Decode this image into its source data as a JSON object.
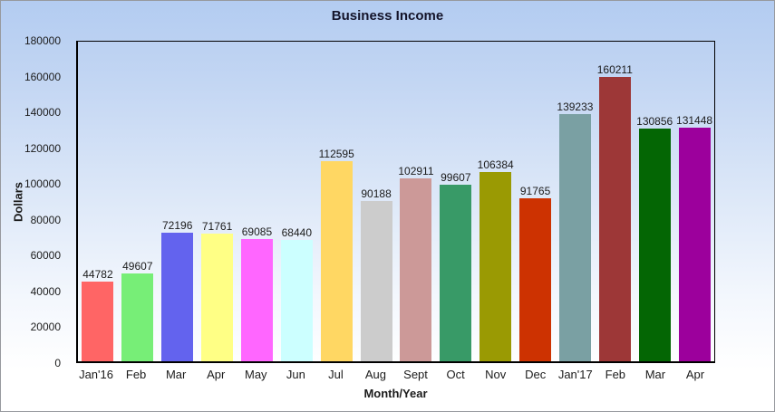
{
  "chart_data": {
    "type": "bar",
    "title": "Business Income",
    "xlabel": "Month/Year",
    "ylabel": "Dollars",
    "ylim": [
      0,
      180000
    ],
    "ytick_step": 20000,
    "grid": false,
    "legend": "none",
    "value_labels_shown": true,
    "categories": [
      "Jan'16",
      "Feb",
      "Mar",
      "Apr",
      "May",
      "Jun",
      "Jul",
      "Aug",
      "Sept",
      "Oct",
      "Nov",
      "Dec",
      "Jan'17",
      "Feb",
      "Mar",
      "Apr"
    ],
    "values": [
      44782,
      49607,
      72196,
      71761,
      69085,
      68440,
      112595,
      90188,
      102911,
      99607,
      106384,
      91765,
      139233,
      160211,
      130856,
      131448
    ],
    "bar_colors": [
      "#ff6565",
      "#77ee77",
      "#6363ee",
      "#ffff85",
      "#ff66ff",
      "#ccffff",
      "#ffd763",
      "#cccccc",
      "#cc9998",
      "#389a67",
      "#9a9a03",
      "#cd3201",
      "#7aa0a3",
      "#9d3737",
      "#046604",
      "#9c009c"
    ]
  },
  "colors": {
    "background_top": "#b3ccf1",
    "background_bottom": "#ffffff",
    "axis_line": "#000000",
    "tick_text": "#1b1b1b",
    "title_text": "#14142a",
    "window_border": "#97999e"
  }
}
